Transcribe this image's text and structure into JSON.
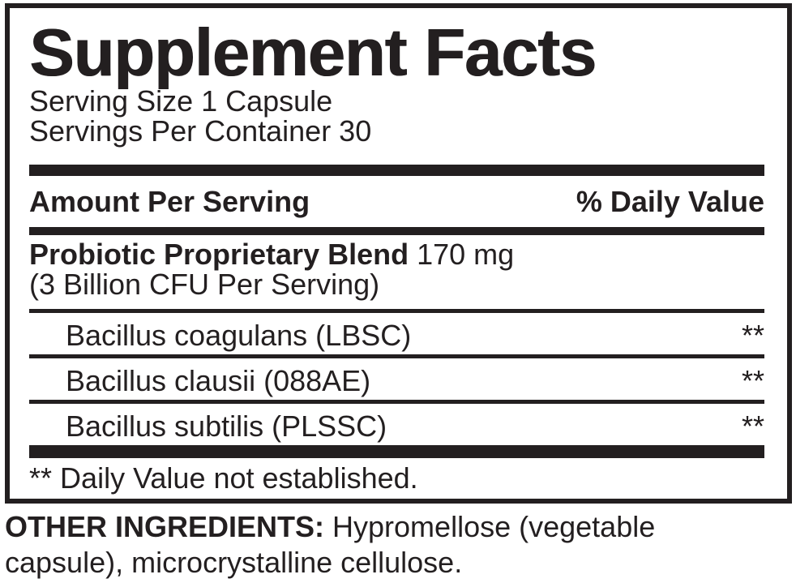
{
  "panel": {
    "title": "Supplement Facts",
    "serving_size": "Serving Size 1 Capsule",
    "servings_per_container": "Servings Per Container 30",
    "header": {
      "left": "Amount Per Serving",
      "right": "% Daily Value"
    },
    "blend": {
      "name": "Probiotic Proprietary Blend",
      "amount": "170 mg",
      "detail": "(3 Billion CFU Per Serving)"
    },
    "rows": [
      {
        "name": "Bacillus coagulans (LBSC)",
        "daily_value": "**"
      },
      {
        "name": "Bacillus clausii (088AE)",
        "daily_value": "**"
      },
      {
        "name": "Bacillus subtilis (PLSSC)",
        "daily_value": "**"
      }
    ],
    "footnote": {
      "symbol": "**",
      "text": "Daily Value not established."
    }
  },
  "other_ingredients": {
    "label": "OTHER INGREDIENTS:",
    "text": "Hypromellose (vegetable capsule), microcrystalline cellulose."
  },
  "colors": {
    "ink": "#231f20",
    "paper": "#ffffff"
  }
}
